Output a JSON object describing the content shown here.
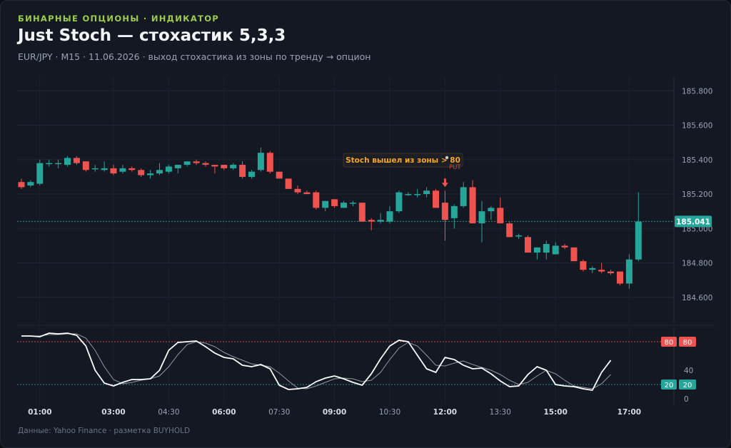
{
  "header": {
    "kicker": "БИНАРНЫЕ ОПЦИОНЫ · ИНДИКАТОР",
    "title": "Just Stoch — стохастик 5,3,3",
    "subtitle": "EUR/JPY · M15 · 11.06.2026 · выход стохастика из зоны по тренду → опцион"
  },
  "footer": "Данные: Yahoo Finance · разметка BUYHOLD",
  "colors": {
    "up": "#26a69a",
    "down": "#ef5350",
    "k_line": "#ffffff",
    "d_line": "#9ea3ad",
    "annotation": "#f5a623",
    "level_80": "#ef5350",
    "level_20": "#26a69a"
  },
  "chart_data": [
    {
      "type": "candlestick",
      "symbol": "EUR/JPY",
      "timeframe": "M15",
      "ylim": [
        184.45,
        185.88
      ],
      "yticks": [
        "184.600",
        "184.800",
        "185.000",
        "185.200",
        "185.400",
        "185.600",
        "185.800"
      ],
      "last_price": "185.041",
      "x_ticks": [
        "01:00",
        "03:00",
        "04:30",
        "06:00",
        "07:30",
        "09:00",
        "10:30",
        "12:00",
        "13:30",
        "15:00",
        "17:00"
      ],
      "x_ticks_major": [
        "01:00",
        "03:00",
        "06:00",
        "09:00",
        "12:00",
        "15:00",
        "17:00"
      ],
      "x_tick_index": [
        2,
        10,
        16,
        22,
        28,
        34,
        40,
        46,
        52,
        58,
        66
      ],
      "annotation": {
        "text": "Stoch вышел из зоны > 80",
        "signal": "PUT",
        "candle_index": 46
      },
      "candles": [
        {
          "o": 185.27,
          "h": 185.29,
          "l": 185.23,
          "c": 185.24
        },
        {
          "o": 185.25,
          "h": 185.28,
          "l": 185.24,
          "c": 185.27
        },
        {
          "o": 185.26,
          "h": 185.4,
          "l": 185.25,
          "c": 185.38
        },
        {
          "o": 185.38,
          "h": 185.4,
          "l": 185.36,
          "c": 185.38
        },
        {
          "o": 185.38,
          "h": 185.4,
          "l": 185.35,
          "c": 185.38
        },
        {
          "o": 185.37,
          "h": 185.42,
          "l": 185.36,
          "c": 185.41
        },
        {
          "o": 185.41,
          "h": 185.42,
          "l": 185.37,
          "c": 185.38
        },
        {
          "o": 185.39,
          "h": 185.39,
          "l": 185.33,
          "c": 185.34
        },
        {
          "o": 185.35,
          "h": 185.37,
          "l": 185.33,
          "c": 185.35
        },
        {
          "o": 185.34,
          "h": 185.39,
          "l": 185.33,
          "c": 185.35
        },
        {
          "o": 185.35,
          "h": 185.37,
          "l": 185.31,
          "c": 185.32
        },
        {
          "o": 185.33,
          "h": 185.37,
          "l": 185.32,
          "c": 185.35
        },
        {
          "o": 185.35,
          "h": 185.36,
          "l": 185.33,
          "c": 185.34
        },
        {
          "o": 185.34,
          "h": 185.35,
          "l": 185.3,
          "c": 185.31
        },
        {
          "o": 185.31,
          "h": 185.34,
          "l": 185.29,
          "c": 185.32
        },
        {
          "o": 185.32,
          "h": 185.38,
          "l": 185.31,
          "c": 185.34
        },
        {
          "o": 185.33,
          "h": 185.37,
          "l": 185.32,
          "c": 185.36
        },
        {
          "o": 185.35,
          "h": 185.37,
          "l": 185.32,
          "c": 185.37
        },
        {
          "o": 185.37,
          "h": 185.39,
          "l": 185.36,
          "c": 185.39
        },
        {
          "o": 185.39,
          "h": 185.4,
          "l": 185.37,
          "c": 185.38
        },
        {
          "o": 185.38,
          "h": 185.39,
          "l": 185.36,
          "c": 185.37
        },
        {
          "o": 185.37,
          "h": 185.37,
          "l": 185.32,
          "c": 185.36
        },
        {
          "o": 185.37,
          "h": 185.37,
          "l": 185.34,
          "c": 185.35
        },
        {
          "o": 185.35,
          "h": 185.38,
          "l": 185.34,
          "c": 185.37
        },
        {
          "o": 185.37,
          "h": 185.39,
          "l": 185.29,
          "c": 185.3
        },
        {
          "o": 185.3,
          "h": 185.34,
          "l": 185.29,
          "c": 185.33
        },
        {
          "o": 185.34,
          "h": 185.47,
          "l": 185.33,
          "c": 185.44
        },
        {
          "o": 185.44,
          "h": 185.45,
          "l": 185.32,
          "c": 185.33
        },
        {
          "o": 185.33,
          "h": 185.33,
          "l": 185.29,
          "c": 185.29
        },
        {
          "o": 185.29,
          "h": 185.29,
          "l": 185.23,
          "c": 185.23
        },
        {
          "o": 185.23,
          "h": 185.25,
          "l": 185.2,
          "c": 185.21
        },
        {
          "o": 185.21,
          "h": 185.22,
          "l": 185.2,
          "c": 185.2
        },
        {
          "o": 185.21,
          "h": 185.22,
          "l": 185.11,
          "c": 185.12
        },
        {
          "o": 185.12,
          "h": 185.16,
          "l": 185.1,
          "c": 185.16
        },
        {
          "o": 185.17,
          "h": 185.17,
          "l": 185.12,
          "c": 185.13
        },
        {
          "o": 185.12,
          "h": 185.16,
          "l": 185.12,
          "c": 185.15
        },
        {
          "o": 185.15,
          "h": 185.16,
          "l": 185.13,
          "c": 185.15
        },
        {
          "o": 185.15,
          "h": 185.15,
          "l": 185.04,
          "c": 185.04
        },
        {
          "o": 185.05,
          "h": 185.06,
          "l": 184.99,
          "c": 185.04
        },
        {
          "o": 185.04,
          "h": 185.09,
          "l": 185.03,
          "c": 185.05
        },
        {
          "o": 185.04,
          "h": 185.13,
          "l": 185.03,
          "c": 185.1
        },
        {
          "o": 185.1,
          "h": 185.22,
          "l": 185.09,
          "c": 185.21
        },
        {
          "o": 185.2,
          "h": 185.21,
          "l": 185.19,
          "c": 185.2
        },
        {
          "o": 185.2,
          "h": 185.23,
          "l": 185.18,
          "c": 185.2
        },
        {
          "o": 185.2,
          "h": 185.24,
          "l": 185.18,
          "c": 185.22
        },
        {
          "o": 185.22,
          "h": 185.23,
          "l": 185.12,
          "c": 185.12
        },
        {
          "o": 185.15,
          "h": 185.22,
          "l": 184.93,
          "c": 185.05
        },
        {
          "o": 185.06,
          "h": 185.14,
          "l": 185.0,
          "c": 185.13
        },
        {
          "o": 185.13,
          "h": 185.27,
          "l": 185.12,
          "c": 185.24
        },
        {
          "o": 185.24,
          "h": 185.28,
          "l": 185.03,
          "c": 185.03
        },
        {
          "o": 185.03,
          "h": 185.16,
          "l": 184.92,
          "c": 185.1
        },
        {
          "o": 185.1,
          "h": 185.13,
          "l": 185.05,
          "c": 185.12
        },
        {
          "o": 185.12,
          "h": 185.18,
          "l": 185.03,
          "c": 185.03
        },
        {
          "o": 185.03,
          "h": 185.04,
          "l": 184.95,
          "c": 184.95
        },
        {
          "o": 184.96,
          "h": 184.97,
          "l": 184.94,
          "c": 184.96
        },
        {
          "o": 184.95,
          "h": 184.96,
          "l": 184.86,
          "c": 184.86
        },
        {
          "o": 184.86,
          "h": 184.89,
          "l": 184.82,
          "c": 184.89
        },
        {
          "o": 184.86,
          "h": 184.93,
          "l": 184.82,
          "c": 184.91
        },
        {
          "o": 184.85,
          "h": 184.92,
          "l": 184.85,
          "c": 184.9
        },
        {
          "o": 184.9,
          "h": 184.91,
          "l": 184.88,
          "c": 184.89
        },
        {
          "o": 184.89,
          "h": 184.89,
          "l": 184.81,
          "c": 184.81
        },
        {
          "o": 184.81,
          "h": 184.82,
          "l": 184.75,
          "c": 184.76
        },
        {
          "o": 184.76,
          "h": 184.78,
          "l": 184.74,
          "c": 184.77
        },
        {
          "o": 184.76,
          "h": 184.8,
          "l": 184.74,
          "c": 184.75
        },
        {
          "o": 184.75,
          "h": 184.76,
          "l": 184.73,
          "c": 184.74
        },
        {
          "o": 184.75,
          "h": 184.75,
          "l": 184.67,
          "c": 184.68
        },
        {
          "o": 184.68,
          "h": 184.85,
          "l": 184.65,
          "c": 184.82
        },
        {
          "o": 184.82,
          "h": 185.21,
          "l": 184.81,
          "c": 185.04
        }
      ]
    },
    {
      "type": "line",
      "name": "stochastic",
      "ylim": [
        -8,
        100
      ],
      "yticks": [
        "0",
        "40"
      ],
      "levels": [
        {
          "value": 80,
          "label": "80"
        },
        {
          "value": 20,
          "label": "20"
        }
      ],
      "k": [
        88,
        88,
        87,
        92,
        91,
        92,
        89,
        74,
        40,
        22,
        18,
        23,
        27,
        27,
        28,
        40,
        68,
        79,
        80,
        81,
        73,
        64,
        58,
        56,
        47,
        45,
        48,
        42,
        19,
        13,
        14,
        16,
        24,
        29,
        32,
        28,
        23,
        19,
        35,
        56,
        74,
        82,
        80,
        61,
        42,
        37,
        58,
        55,
        47,
        42,
        43,
        35,
        25,
        17,
        18,
        34,
        45,
        40,
        20,
        18,
        17,
        14,
        12,
        37,
        54
      ],
      "d": [
        88,
        88,
        88,
        90,
        90,
        91,
        91,
        85,
        68,
        45,
        27,
        21,
        23,
        26,
        28,
        32,
        45,
        62,
        76,
        80,
        78,
        73,
        65,
        59,
        54,
        49,
        47,
        45,
        36,
        25,
        15,
        14,
        18,
        23,
        28,
        29,
        28,
        24,
        26,
        37,
        55,
        71,
        79,
        74,
        61,
        47,
        46,
        50,
        53,
        48,
        44,
        40,
        34,
        26,
        20,
        23,
        32,
        40,
        35,
        26,
        18,
        16,
        14,
        21,
        34
      ]
    }
  ]
}
